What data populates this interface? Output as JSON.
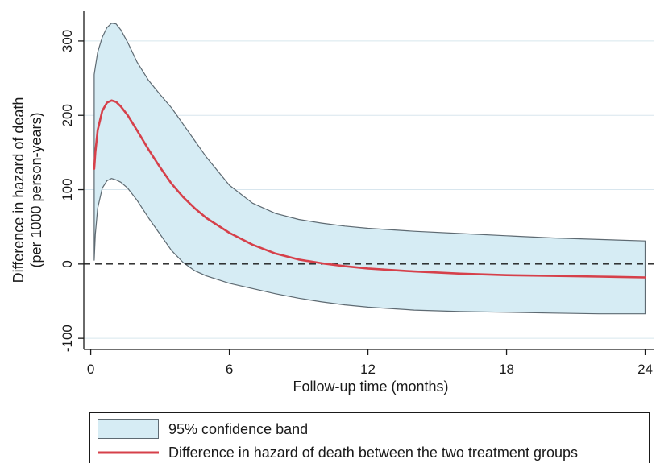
{
  "chart_data": {
    "type": "area",
    "xlabel": "Follow-up time (months)",
    "ylabel_lines": [
      "Difference in hazard of death",
      "(per 1000 person-years)"
    ],
    "xlim": [
      -0.3,
      24.4
    ],
    "ylim": [
      -115,
      340
    ],
    "xticks": [
      0,
      6,
      12,
      18,
      24
    ],
    "yticks": [
      -100,
      0,
      100,
      200,
      300
    ],
    "ytick_labels": [
      "-100",
      "0",
      "100",
      "200",
      "300"
    ],
    "grid": "horizontal",
    "reference_line": {
      "y": 0,
      "style": "dashed"
    },
    "colors": {
      "band_fill": "#d6ecf4",
      "band_edge": "#5e6a72",
      "line": "#d6404a",
      "grid": "#d8e6ee",
      "axis": "#1a1a1a"
    },
    "series": [
      {
        "name": "95% confidence band",
        "kind": "band",
        "x": [
          0.15,
          0.2,
          0.3,
          0.5,
          0.7,
          0.9,
          1.1,
          1.3,
          1.6,
          2.0,
          2.5,
          3.0,
          3.5,
          4.0,
          4.5,
          5.0,
          6.0,
          7.0,
          8.0,
          9.0,
          10.0,
          11.0,
          12.0,
          14.0,
          16.0,
          18.0,
          20.0,
          22.0,
          24.0
        ],
        "upper": [
          255,
          265,
          285,
          305,
          318,
          324,
          323,
          315,
          298,
          272,
          247,
          228,
          210,
          188,
          166,
          144,
          106,
          82,
          68,
          60,
          55,
          51,
          48,
          44,
          41,
          38,
          35,
          33,
          31
        ],
        "lower": [
          5,
          40,
          75,
          102,
          112,
          115,
          113,
          110,
          102,
          86,
          62,
          40,
          18,
          2,
          -9,
          -16,
          -26,
          -33,
          -40,
          -46,
          -51,
          -55,
          -58,
          -62,
          -64,
          -65,
          -66,
          -67,
          -67
        ]
      },
      {
        "name": "Difference in hazard of death between the two treatment groups",
        "kind": "line",
        "x": [
          0.15,
          0.2,
          0.3,
          0.5,
          0.7,
          0.9,
          1.1,
          1.3,
          1.6,
          2.0,
          2.5,
          3.0,
          3.5,
          4.0,
          4.5,
          5.0,
          6.0,
          7.0,
          8.0,
          9.0,
          10.0,
          11.0,
          12.0,
          14.0,
          16.0,
          18.0,
          20.0,
          22.0,
          24.0
        ],
        "y": [
          128,
          150,
          180,
          206,
          217,
          220,
          218,
          212,
          200,
          180,
          154,
          130,
          108,
          90,
          75,
          62,
          42,
          26,
          14,
          6,
          1,
          -3,
          -6,
          -10,
          -13,
          -15,
          -16,
          -17,
          -18
        ]
      }
    ],
    "legend": {
      "position": "bottom",
      "entries": [
        "95% confidence band",
        "Difference in hazard of death between the two treatment groups"
      ]
    }
  }
}
